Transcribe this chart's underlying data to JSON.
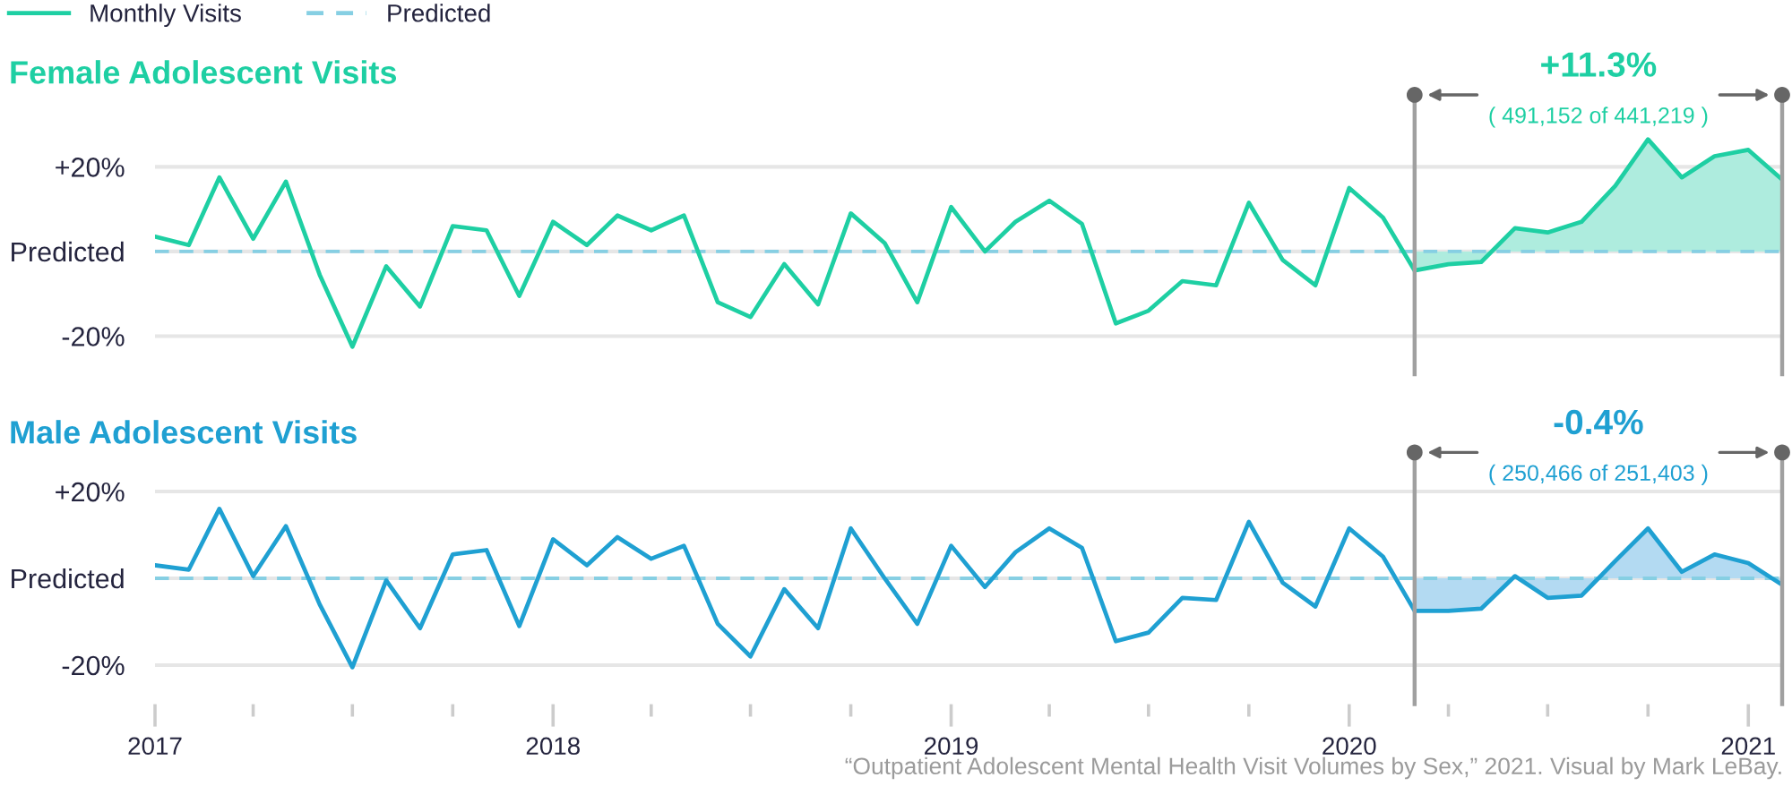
{
  "chart_data": [
    {
      "type": "line",
      "title": "Female Adolescent Visits",
      "x": [
        "2017-01",
        "2017-02",
        "2017-03",
        "2017-04",
        "2017-05",
        "2017-06",
        "2017-07",
        "2017-08",
        "2017-09",
        "2017-10",
        "2017-11",
        "2017-12",
        "2018-01",
        "2018-02",
        "2018-03",
        "2018-04",
        "2018-05",
        "2018-06",
        "2018-07",
        "2018-08",
        "2018-09",
        "2018-10",
        "2018-11",
        "2018-12",
        "2019-01",
        "2019-02",
        "2019-03",
        "2019-04",
        "2019-05",
        "2019-06",
        "2019-07",
        "2019-08",
        "2019-09",
        "2019-10",
        "2019-11",
        "2019-12",
        "2020-01",
        "2020-02",
        "2020-03",
        "2020-04",
        "2020-05",
        "2020-06",
        "2020-07",
        "2020-08",
        "2020-09",
        "2020-10",
        "2020-11",
        "2020-12",
        "2021-01",
        "2021-02"
      ],
      "xlim": [
        "2017-01",
        "2021-02"
      ],
      "ylim": [
        -29,
        37
      ],
      "yticks": [
        {
          "value": 20,
          "label": "+20%"
        },
        {
          "value": 0,
          "label": "Predicted"
        },
        {
          "value": -20,
          "label": "-20%"
        }
      ],
      "grid": "y",
      "tick_labels": "y",
      "legend": "top left",
      "series": [
        {
          "name": "Monthly Visits",
          "color": "#1ecfa3",
          "values": [
            3.5,
            1.5,
            17.5,
            3,
            16.5,
            -5.5,
            -22.5,
            -3.5,
            -13,
            6,
            5,
            -10.5,
            7,
            1.5,
            8.5,
            5,
            8.5,
            -12,
            -15.5,
            -3,
            -12.5,
            9,
            2,
            -12,
            10.5,
            0,
            7,
            12,
            6.5,
            -17,
            -14,
            -7,
            -8,
            11.5,
            -2,
            -8,
            15,
            8,
            -4.5,
            -3,
            -2.5,
            5.5,
            4.5,
            7,
            15.5,
            26.5,
            17.5,
            22.5,
            24,
            17
          ]
        },
        {
          "name": "Predicted",
          "color": "#86cfe3",
          "line_style": "dashed",
          "x": [
            "2017-01",
            "2021-02"
          ],
          "values": [
            0,
            0
          ]
        },
        {
          "type": "area",
          "color": "#aeecde",
          "x": [
            "2020-03",
            "2020-04",
            "2020-05",
            "2020-06",
            "2020-07",
            "2020-08",
            "2020-09",
            "2020-10",
            "2020-11",
            "2020-12",
            "2021-01",
            "2021-02"
          ],
          "values": [
            -4.5,
            -3,
            -2.5,
            5.5,
            4.5,
            7,
            15.5,
            26.5,
            17.5,
            22.5,
            24,
            17
          ]
        }
      ],
      "ref_lines": [
        {
          "axis": "x",
          "value": "2020-03",
          "color": "#a0a0a0"
        },
        {
          "axis": "x",
          "value": "2021-02",
          "color": "#a0a0a0"
        }
      ],
      "annotations": [
        "+11.3%",
        "( 491,152 of 441,219 )"
      ]
    },
    {
      "type": "line",
      "title": "Male Adolescent Visits",
      "x": [
        "2017-01",
        "2017-02",
        "2017-03",
        "2017-04",
        "2017-05",
        "2017-06",
        "2017-07",
        "2017-08",
        "2017-09",
        "2017-10",
        "2017-11",
        "2017-12",
        "2018-01",
        "2018-02",
        "2018-03",
        "2018-04",
        "2018-05",
        "2018-06",
        "2018-07",
        "2018-08",
        "2018-09",
        "2018-10",
        "2018-11",
        "2018-12",
        "2019-01",
        "2019-02",
        "2019-03",
        "2019-04",
        "2019-05",
        "2019-06",
        "2019-07",
        "2019-08",
        "2019-09",
        "2019-10",
        "2019-11",
        "2019-12",
        "2020-01",
        "2020-02",
        "2020-03",
        "2020-04",
        "2020-05",
        "2020-06",
        "2020-07",
        "2020-08",
        "2020-09",
        "2020-10",
        "2020-11",
        "2020-12",
        "2021-01",
        "2021-02"
      ],
      "xlim": [
        "2017-01",
        "2021-02"
      ],
      "ylim": [
        -29,
        29
      ],
      "xticks": [
        {
          "value": "2017-01",
          "label": "2017"
        },
        {
          "value": "2017-04",
          "label": null
        },
        {
          "value": "2017-07",
          "label": null
        },
        {
          "value": "2017-10",
          "label": null
        },
        {
          "value": "2018-01",
          "label": "2018"
        },
        {
          "value": "2018-04",
          "label": null
        },
        {
          "value": "2018-07",
          "label": null
        },
        {
          "value": "2018-10",
          "label": null
        },
        {
          "value": "2019-01",
          "label": "2019"
        },
        {
          "value": "2019-04",
          "label": null
        },
        {
          "value": "2019-07",
          "label": null
        },
        {
          "value": "2019-10",
          "label": null
        },
        {
          "value": "2020-01",
          "label": "2020"
        },
        {
          "value": "2020-04",
          "label": null
        },
        {
          "value": "2020-07",
          "label": null
        },
        {
          "value": "2020-10",
          "label": null
        },
        {
          "value": "2021-01",
          "label": "2021"
        }
      ],
      "yticks": [
        {
          "value": 20,
          "label": "+20%"
        },
        {
          "value": 0,
          "label": "Predicted"
        },
        {
          "value": -20,
          "label": "-20%"
        }
      ],
      "grid": "y",
      "series": [
        {
          "color": "#1fa0d2",
          "values": [
            3,
            2,
            16,
            0.5,
            12,
            -6,
            -20.5,
            -0.5,
            -11.5,
            5.5,
            6.5,
            -11,
            9,
            3,
            9.5,
            4.5,
            7.5,
            -10.5,
            -18,
            -2.5,
            -11.5,
            11.5,
            0,
            -10.5,
            7.5,
            -2,
            6,
            11.5,
            7,
            -14.5,
            -12.5,
            -4.5,
            -5,
            13,
            -1,
            -6.5,
            11.5,
            5,
            -7.5,
            -7.5,
            -7,
            0.5,
            -4.5,
            -4,
            4,
            11.5,
            1.5,
            5.5,
            3.5,
            -1.5
          ]
        },
        {
          "color": "#86cfe3",
          "line_style": "dashed",
          "x": [
            "2017-01",
            "2021-02"
          ],
          "values": [
            0,
            0
          ]
        },
        {
          "type": "area",
          "color": "#b3daf2",
          "x": [
            "2020-03",
            "2020-04",
            "2020-05",
            "2020-06",
            "2020-07",
            "2020-08",
            "2020-09",
            "2020-10",
            "2020-11",
            "2020-12",
            "2021-01",
            "2021-02"
          ],
          "values": [
            -7.5,
            -7.5,
            -7,
            0.5,
            -4.5,
            -4,
            4,
            11.5,
            1.5,
            5.5,
            3.5,
            -1.5
          ]
        }
      ],
      "ref_lines": [
        {
          "axis": "x",
          "value": "2020-03",
          "color": "#a0a0a0"
        },
        {
          "axis": "x",
          "value": "2021-02",
          "color": "#a0a0a0"
        }
      ],
      "annotations": [
        "-0.4%",
        "( 250,466 of 251,403 )",
        "“Outpatient Adolescent Mental Health Visit Volumes by Sex,” 2021. Visual by Mark LeBay."
      ]
    }
  ]
}
